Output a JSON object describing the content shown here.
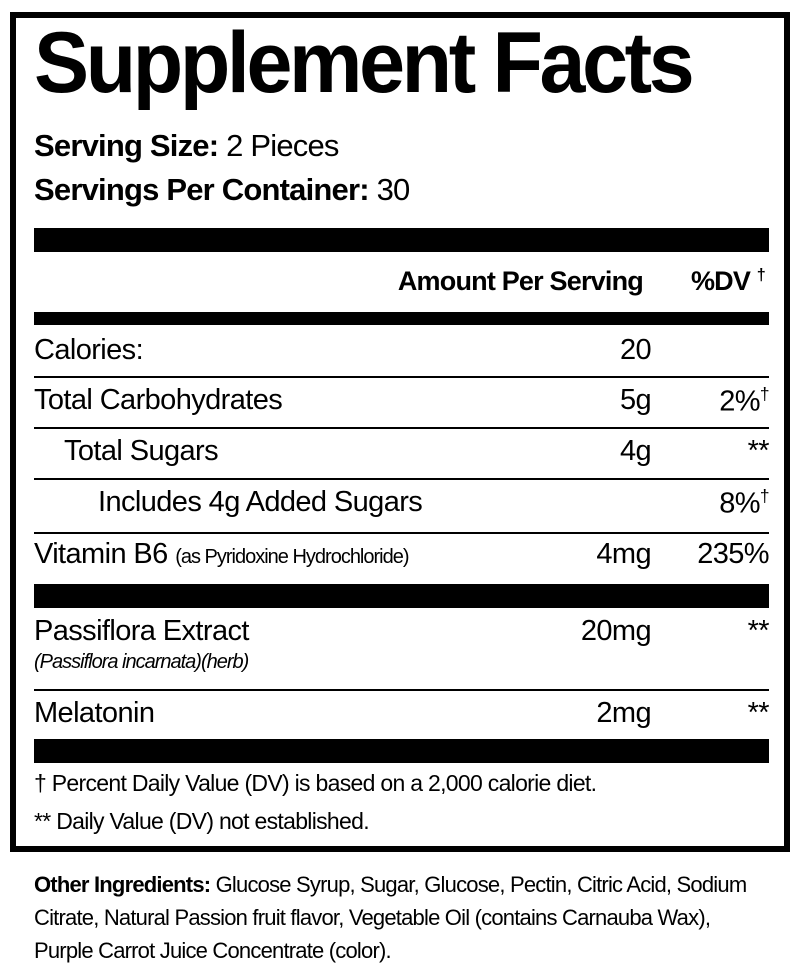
{
  "title": "Supplement Facts",
  "serving_size": {
    "label": "Serving Size:",
    "value": "2 Pieces"
  },
  "servings_per_container": {
    "label": "Servings Per Container:",
    "value": "30"
  },
  "header": {
    "amount": "Amount Per Serving",
    "dv": "%DV",
    "dv_mark": "†"
  },
  "rows": [
    {
      "name": "Calories:",
      "amount": "20",
      "dv": ""
    },
    {
      "name": "Total Carbohydrates",
      "amount": "5g",
      "dv": "2%",
      "dv_mark": "†"
    },
    {
      "name": "Total Sugars",
      "amount": "4g",
      "dv": "**"
    },
    {
      "name": "Includes 4g Added Sugars",
      "amount": "",
      "dv": "8%",
      "dv_mark": "†"
    },
    {
      "name": "Vitamin B6",
      "note": "(as Pyridoxine Hydrochloride)",
      "amount": "4mg",
      "dv": "235%"
    },
    {
      "name": "Passiflora Extract",
      "note": "(Passiflora incarnata)(herb)",
      "amount": "20mg",
      "dv": "**"
    },
    {
      "name": "Melatonin",
      "amount": "2mg",
      "dv": "**"
    }
  ],
  "footnotes": [
    "† Percent Daily Value (DV) is based on a 2,000 calorie diet.",
    "** Daily Value (DV) not established."
  ],
  "other_ingredients": {
    "label": "Other Ingredients:",
    "text": "Glucose Syrup, Sugar, Glucose, Pectin, Citric Acid, Sodium Citrate, Natural Passion fruit flavor, Vegetable Oil (contains Carnauba Wax), Purple Carrot Juice Concentrate (color)."
  }
}
